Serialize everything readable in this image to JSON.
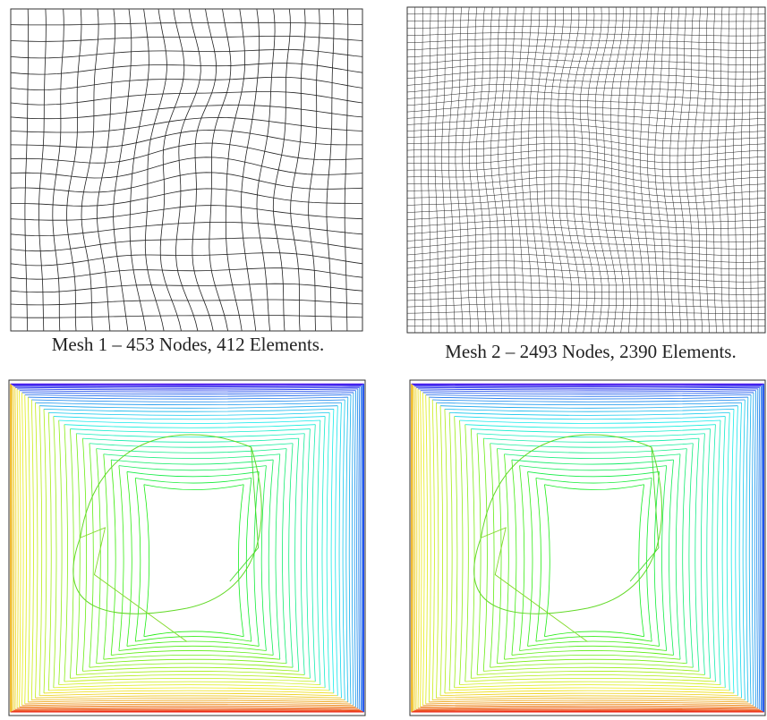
{
  "captions": [
    "Mesh 1 – 453 Nodes, 412 Elements.",
    "Mesh 2 – 2493 Nodes, 2390 Elements."
  ]
}
